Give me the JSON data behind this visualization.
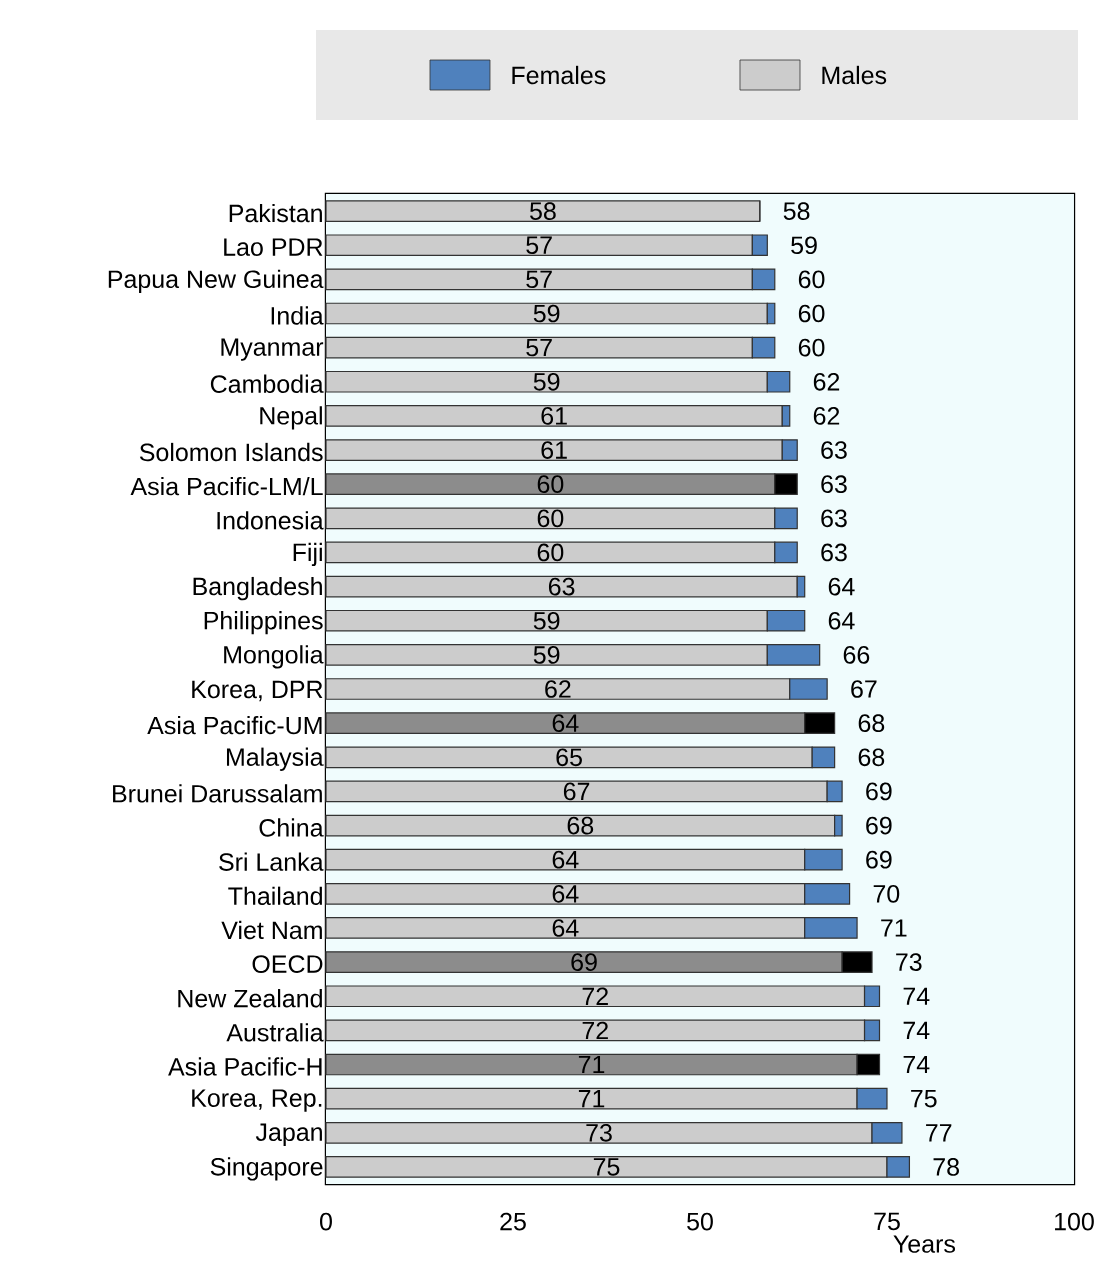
{
  "chart_data": {
    "type": "bar",
    "orientation": "horizontal",
    "stacked": true,
    "xlabel": "Years",
    "xlim": [
      0,
      100
    ],
    "xticks": [
      0,
      25,
      50,
      75,
      100
    ],
    "legend": "top",
    "categories": [
      "Pakistan",
      "Lao PDR",
      "Papua New Guinea",
      "India",
      "Myanmar",
      "Cambodia",
      "Nepal",
      "Solomon Islands",
      "Asia Pacific-LM/L",
      "Indonesia",
      "Fiji",
      "Bangladesh",
      "Philippines",
      "Mongolia",
      "Korea, DPR",
      "Asia Pacific-UM",
      "Malaysia",
      "Brunei Darussalam",
      "China",
      "Sri Lanka",
      "Thailand",
      "Viet Nam",
      "OECD",
      "New Zealand",
      "Australia",
      "Asia Pacific-H",
      "Korea, Rep.",
      "Japan",
      "Singapore"
    ],
    "series": [
      {
        "name": "Males",
        "color": "#cccccc",
        "colors": [
          "#cccccc",
          "#cccccc",
          "#cccccc",
          "#cccccc",
          "#cccccc",
          "#cccccc",
          "#cccccc",
          "#cccccc",
          "#8c8c8c",
          "#cccccc",
          "#cccccc",
          "#cccccc",
          "#cccccc",
          "#cccccc",
          "#cccccc",
          "#8c8c8c",
          "#cccccc",
          "#cccccc",
          "#cccccc",
          "#cccccc",
          "#cccccc",
          "#cccccc",
          "#8c8c8c",
          "#cccccc",
          "#cccccc",
          "#8c8c8c",
          "#cccccc",
          "#cccccc",
          "#cccccc"
        ],
        "values": [
          58,
          57,
          57,
          59,
          57,
          59,
          61,
          61,
          60,
          60,
          60,
          63,
          59,
          59,
          62,
          64,
          65,
          67,
          68,
          64,
          64,
          64,
          69,
          72,
          72,
          71,
          71,
          73,
          75
        ],
        "value_labels": [
          "58",
          "57",
          "57",
          "59",
          "57",
          "59",
          "61",
          "61",
          "60",
          "60",
          "60",
          "63",
          "59",
          "59",
          "62",
          "64",
          "65",
          "67",
          "68",
          "64",
          "64",
          "64",
          "69",
          "72",
          "72",
          "71",
          "71",
          "73",
          "75"
        ]
      },
      {
        "name": "Females",
        "color": "#4f81bd",
        "colors": [
          "#4f81bd",
          "#4f81bd",
          "#4f81bd",
          "#4f81bd",
          "#4f81bd",
          "#4f81bd",
          "#4f81bd",
          "#4f81bd",
          "#000000",
          "#4f81bd",
          "#4f81bd",
          "#4f81bd",
          "#4f81bd",
          "#4f81bd",
          "#4f81bd",
          "#000000",
          "#4f81bd",
          "#4f81bd",
          "#4f81bd",
          "#4f81bd",
          "#4f81bd",
          "#4f81bd",
          "#000000",
          "#4f81bd",
          "#4f81bd",
          "#000000",
          "#4f81bd",
          "#4f81bd",
          "#4f81bd"
        ],
        "values": [
          0,
          2,
          3,
          1,
          3,
          3,
          1,
          2,
          3,
          3,
          3,
          1,
          5,
          7,
          5,
          4,
          3,
          2,
          1,
          5,
          6,
          7,
          4,
          2,
          2,
          3,
          4,
          4,
          3
        ]
      }
    ],
    "totals": [
      "58",
      "59",
      "60",
      "60",
      "60",
      "62",
      "62",
      "63",
      "63",
      "63",
      "63",
      "64",
      "64",
      "66",
      "67",
      "68",
      "68",
      "69",
      "69",
      "69",
      "70",
      "71",
      "73",
      "74",
      "74",
      "74",
      "75",
      "77",
      "78"
    ]
  }
}
